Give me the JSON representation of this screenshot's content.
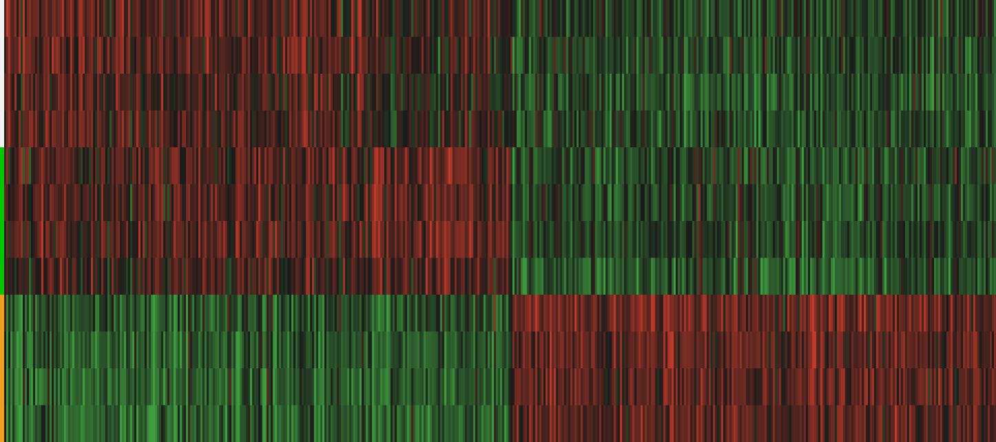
{
  "chart_data": {
    "type": "heatmap",
    "title": "",
    "xlabel": "",
    "ylabel": "",
    "rows": 12,
    "columns": 480,
    "value_range": [
      -1,
      1
    ],
    "colormap": {
      "low": "#3f9e3f",
      "mid": "#1a1a1a",
      "high": "#c23a2a"
    },
    "column_clusters": [
      {
        "start": 0,
        "end": 180
      },
      {
        "start": 180,
        "end": 245
      },
      {
        "start": 245,
        "end": 480
      }
    ],
    "row_groups": [
      {
        "rows": [
          0,
          1,
          2,
          3
        ],
        "color": "#f2f2f2",
        "cluster_means": [
          0.3,
          0.05,
          -0.28
        ]
      },
      {
        "rows": [
          4,
          5,
          6,
          7
        ],
        "color": "#00c800",
        "cluster_means": [
          0.28,
          0.38,
          -0.3
        ]
      },
      {
        "rows": [
          8,
          9,
          10,
          11
        ],
        "color": "#f0a020",
        "cluster_means": [
          -0.48,
          -0.4,
          0.42
        ]
      }
    ],
    "grid": false,
    "legend": "none"
  }
}
